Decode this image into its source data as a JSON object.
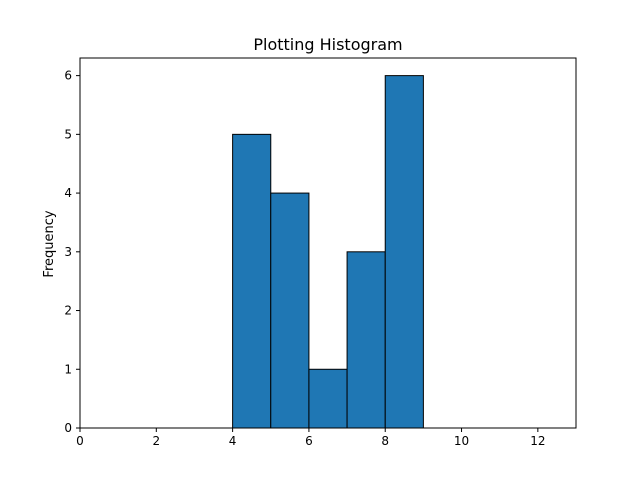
{
  "chart_data": {
    "type": "bar",
    "title": "Plotting Histogram",
    "xlabel": "",
    "ylabel": "Frequency",
    "bins": [
      {
        "start": 4,
        "end": 5,
        "count": 5
      },
      {
        "start": 5,
        "end": 6,
        "count": 4
      },
      {
        "start": 6,
        "end": 7,
        "count": 1
      },
      {
        "start": 7,
        "end": 8,
        "count": 3
      },
      {
        "start": 8,
        "end": 9,
        "count": 6
      }
    ],
    "xlim": [
      0,
      13
    ],
    "ylim": [
      0,
      6.3
    ],
    "xticks": [
      0,
      2,
      4,
      6,
      8,
      10,
      12
    ],
    "yticks": [
      0,
      1,
      2,
      3,
      4,
      5,
      6
    ],
    "bar_color": "#1f77b4",
    "edge_color": "#000000",
    "grid": false,
    "legend": "none"
  }
}
